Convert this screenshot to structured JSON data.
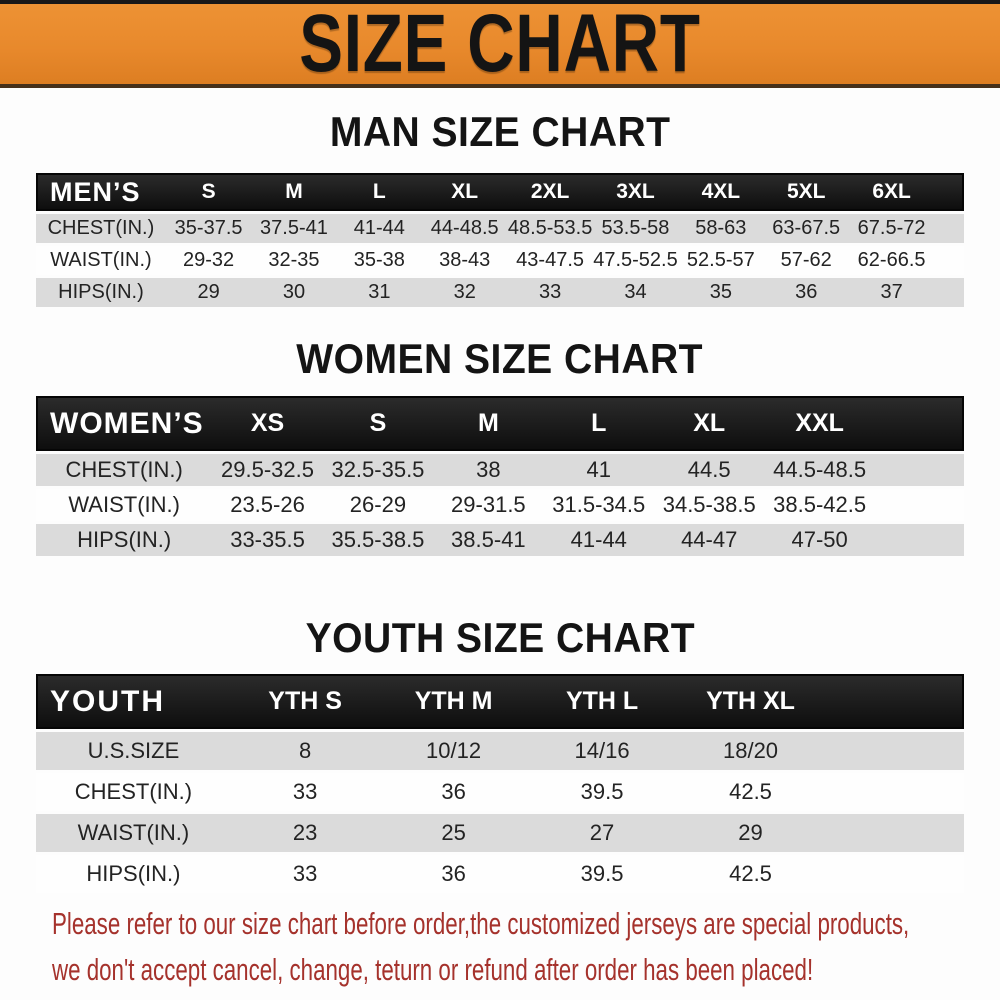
{
  "banner": {
    "title": "SIZE CHART"
  },
  "sections": [
    {
      "id": "men",
      "title": "MAN SIZE CHART",
      "corner_label": "MEN’S",
      "sizes": [
        "S",
        "M",
        "L",
        "XL",
        "2XL",
        "3XL",
        "4XL",
        "5XL",
        "6XL"
      ],
      "rows": [
        {
          "label": "CHEST(IN.)",
          "values": [
            "35-37.5",
            "37.5-41",
            "41-44",
            "44-48.5",
            "48.5-53.5",
            "53.5-58",
            "58-63",
            "63-67.5",
            "67.5-72"
          ]
        },
        {
          "label": "WAIST(IN.)",
          "values": [
            "29-32",
            "32-35",
            "35-38",
            "38-43",
            "43-47.5",
            "47.5-52.5",
            "52.5-57",
            "57-62",
            "62-66.5"
          ]
        },
        {
          "label": "HIPS(IN.)",
          "values": [
            "29",
            "30",
            "31",
            "32",
            "33",
            "34",
            "35",
            "36",
            "37"
          ]
        }
      ]
    },
    {
      "id": "women",
      "title": "WOMEN SIZE CHART",
      "corner_label": "WOMEN’S",
      "sizes": [
        "XS",
        "S",
        "M",
        "L",
        "XL",
        "XXL"
      ],
      "rows": [
        {
          "label": "CHEST(IN.)",
          "values": [
            "29.5-32.5",
            "32.5-35.5",
            "38",
            "41",
            "44.5",
            "44.5-48.5"
          ]
        },
        {
          "label": "WAIST(IN.)",
          "values": [
            "23.5-26",
            "26-29",
            "29-31.5",
            "31.5-34.5",
            "34.5-38.5",
            "38.5-42.5"
          ]
        },
        {
          "label": "HIPS(IN.)",
          "values": [
            "33-35.5",
            "35.5-38.5",
            "38.5-41",
            "41-44",
            "44-47",
            "47-50"
          ]
        }
      ]
    },
    {
      "id": "youth",
      "title": "YOUTH SIZE CHART",
      "corner_label": "YOUTH",
      "sizes": [
        "YTH S",
        "YTH M",
        "YTH L",
        "YTH XL"
      ],
      "rows": [
        {
          "label": "U.S.SIZE",
          "values": [
            "8",
            "10/12",
            "14/16",
            "18/20"
          ]
        },
        {
          "label": "CHEST(IN.)",
          "values": [
            "33",
            "36",
            "39.5",
            "42.5"
          ]
        },
        {
          "label": "WAIST(IN.)",
          "values": [
            "23",
            "25",
            "27",
            "29"
          ]
        },
        {
          "label": "HIPS(IN.)",
          "values": [
            "33",
            "36",
            "39.5",
            "42.5"
          ]
        }
      ]
    }
  ],
  "footer": {
    "line1": "Please refer to our size chart before order,the customized jerseys are special products,",
    "line2": "we don't accept cancel, change, teturn or refund after order has been placed!"
  },
  "colors": {
    "banner_orange": "#E8892C",
    "banner_border_top": "#181818",
    "banner_border_bottom": "#46301A",
    "bar_black": "#141414",
    "bar_text": "#FFFFFF",
    "row_gray": "#DBDBDB",
    "row_white": "#FEFEFE",
    "table_text": "#232323",
    "title_black": "#141414",
    "notice_red": "#A5322C"
  }
}
